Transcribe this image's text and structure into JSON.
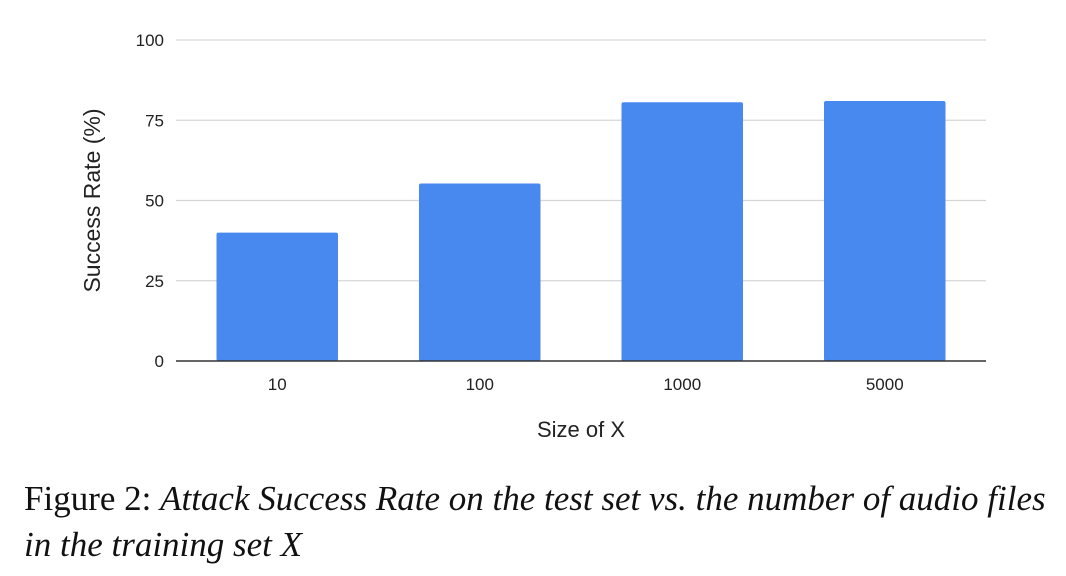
{
  "chart_data": {
    "type": "bar",
    "categories": [
      "10",
      "100",
      "1000",
      "5000"
    ],
    "values": [
      40,
      55.3,
      80.6,
      81
    ],
    "xlabel": "Size of X",
    "ylabel": "Success Rate (%)",
    "ylim": [
      0,
      100
    ],
    "yticks": [
      0,
      25,
      50,
      75,
      100
    ],
    "grid": true,
    "bar_color": "#4889F0",
    "grid_color": "#D6D6D6",
    "axis_color": "#333333"
  },
  "caption": {
    "label": "Figure 2:",
    "text": "Attack Success Rate on the test set vs. the number of audio files in the training set X"
  }
}
